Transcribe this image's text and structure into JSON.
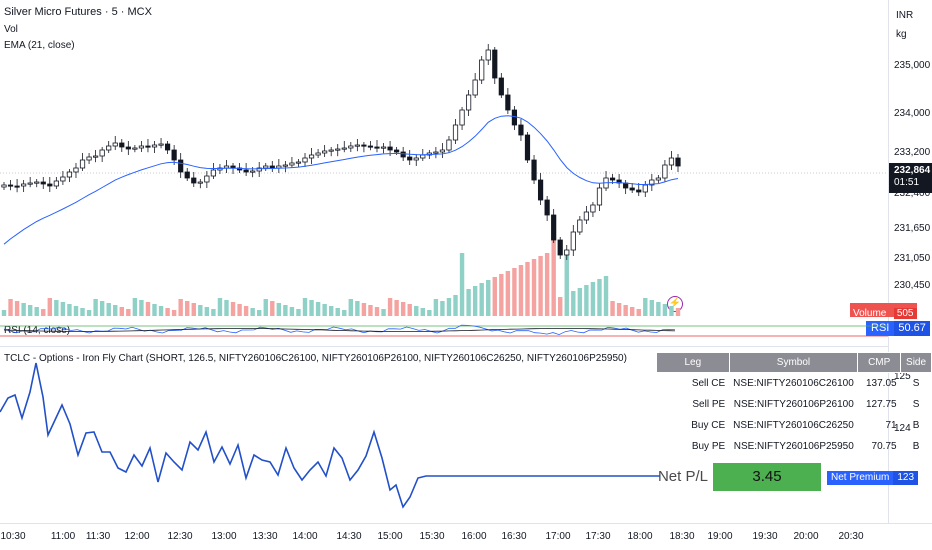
{
  "header": {
    "title": "Silver Micro Futures · 5 · MCX",
    "vol_label": "Vol",
    "ema_label": "EMA (21, close)",
    "currency": "INR",
    "unit": "kg"
  },
  "price_axis": {
    "ticks": [
      "235,000",
      "234,000",
      "233,200",
      "232,400",
      "231,650",
      "231,050",
      "230,450"
    ],
    "current_price": "232,864",
    "countdown": "01:51"
  },
  "volume_badge": {
    "label": "Volume",
    "value": "505"
  },
  "rsi": {
    "label": "RSI (14, close)",
    "tag": "RSI",
    "value": "50.67"
  },
  "indicator": {
    "title": "TCLC - Options - Iron Fly Chart (SHORT, 126.5, NIFTY260106C26100, NIFTY260106P26100, NIFTY260106C26250, NIFTY260106P25950)",
    "axis_ticks": [
      "125",
      "124"
    ],
    "table": {
      "headers": [
        "Leg",
        "Symbol",
        "CMP",
        "Side"
      ],
      "rows": [
        [
          "Sell CE",
          "NSE:NIFTY260106C26100",
          "137.05",
          "S"
        ],
        [
          "Sell PE",
          "NSE:NIFTY260106P26100",
          "127.75",
          "S"
        ],
        [
          "Buy CE",
          "NSE:NIFTY260106C26250",
          "71",
          "B"
        ],
        [
          "Buy PE",
          "NSE:NIFTY260106P25950",
          "70.75",
          "B"
        ]
      ]
    },
    "net_pl_label": "Net P/L",
    "net_pl_value": "3.45",
    "net_premium_label": "Net Premium",
    "net_premium_value": "123"
  },
  "time_axis": [
    "10:30",
    "11:00",
    "11:30",
    "12:00",
    "12:30",
    "13:00",
    "13:30",
    "14:00",
    "14:30",
    "15:00",
    "15:30",
    "16:00",
    "16:30",
    "17:00",
    "17:30",
    "18:00",
    "18:30",
    "19:00",
    "19:30",
    "20:00",
    "20:30"
  ],
  "colors": {
    "up": "#26a69a",
    "down": "#ef5350",
    "ema": "#2962ff",
    "line": "#2250c8",
    "vol_up": "#8fd0c7",
    "vol_down": "#f4a3a0",
    "pl_green": "#4caf50",
    "premium_blue": "#2962ff"
  }
}
